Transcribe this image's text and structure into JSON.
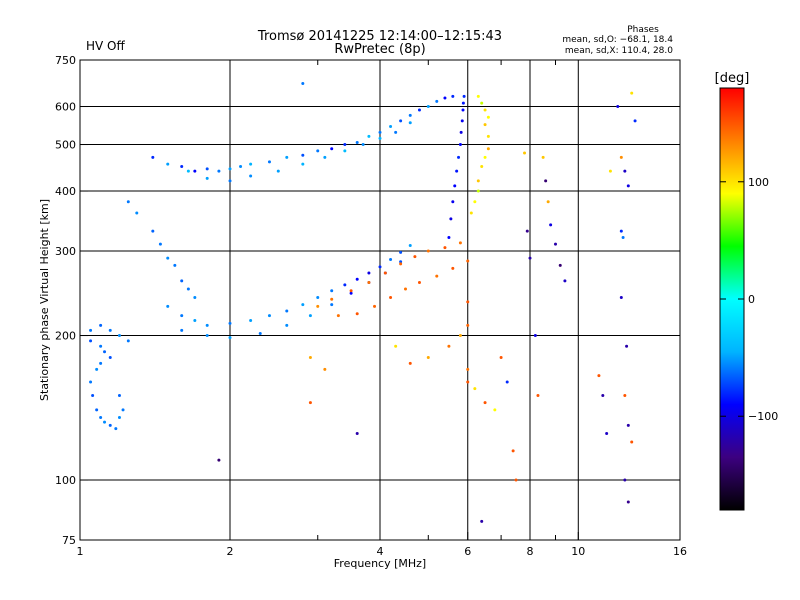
{
  "status": {
    "hv_label": "HV Off",
    "hv_color": "#cc0000"
  },
  "header": {
    "title": "Tromsø 20141225 12:14:00–12:15:43",
    "subtitle": "RwPretec (8p)"
  },
  "phases_box": {
    "heading": "Phases",
    "line_o": "mean, sd,O: −68.1, 18.4",
    "line_x": "mean, sd,X: 110.4, 28.0"
  },
  "colorbar": {
    "label": "[deg]",
    "range": [
      -180,
      180
    ],
    "ticks": [
      {
        "value": 100,
        "label": "100"
      },
      {
        "value": 0,
        "label": "0"
      },
      {
        "value": -100,
        "label": "−100"
      }
    ],
    "colors": [
      "#000000",
      "#3c0080",
      "#0000ff",
      "#00b4ff",
      "#00ffff",
      "#00ff00",
      "#ffff00",
      "#ff8000",
      "#ff0000"
    ]
  },
  "chart_data": {
    "type": "scatter",
    "xlabel": "Frequency [MHz]",
    "ylabel": "Stationary phase Virtual Height [km]",
    "xscale": "log",
    "yscale": "log",
    "xlim": [
      1,
      16
    ],
    "ylim": [
      75,
      750
    ],
    "x_ticks": [
      {
        "value": 1,
        "label": "1"
      },
      {
        "value": 2,
        "label": "2"
      },
      {
        "value": 4,
        "label": "4"
      },
      {
        "value": 6,
        "label": "6"
      },
      {
        "value": 8,
        "label": "8"
      },
      {
        "value": 10,
        "label": "10"
      },
      {
        "value": 16,
        "label": "16"
      }
    ],
    "x_minor": [
      3,
      5,
      7,
      9
    ],
    "x_grid": [
      2,
      4,
      6,
      8,
      10
    ],
    "y_ticks": [
      {
        "value": 75,
        "label": "75"
      },
      {
        "value": 100,
        "label": "100"
      },
      {
        "value": 200,
        "label": "200"
      },
      {
        "value": 300,
        "label": "300"
      },
      {
        "value": 400,
        "label": "400"
      },
      {
        "value": 500,
        "label": "500"
      },
      {
        "value": 600,
        "label": "600"
      },
      {
        "value": 750,
        "label": "750"
      }
    ],
    "y_grid": [
      100,
      200,
      300,
      400,
      500,
      600
    ],
    "grid": true,
    "series": [
      {
        "points": [
          [
            1.5,
            455,
            -50
          ],
          [
            1.6,
            450,
            -80
          ],
          [
            1.7,
            440,
            -90
          ],
          [
            1.8,
            445,
            -70
          ],
          [
            1.9,
            440,
            -60
          ],
          [
            2.0,
            445,
            -50
          ],
          [
            2.1,
            450,
            -55
          ],
          [
            2.2,
            455,
            -45
          ],
          [
            2.4,
            460,
            -60
          ],
          [
            2.6,
            470,
            -50
          ],
          [
            2.8,
            475,
            -70
          ],
          [
            3.0,
            485,
            -60
          ],
          [
            3.2,
            490,
            -90
          ],
          [
            3.4,
            500,
            -80
          ],
          [
            3.6,
            505,
            -60
          ],
          [
            3.8,
            520,
            -40
          ],
          [
            4.0,
            530,
            -60
          ],
          [
            4.2,
            545,
            -50
          ],
          [
            4.4,
            560,
            -70
          ],
          [
            4.6,
            575,
            -60
          ],
          [
            4.8,
            590,
            -80
          ],
          [
            5.0,
            600,
            -50
          ],
          [
            5.2,
            615,
            -60
          ],
          [
            5.4,
            625,
            -90
          ],
          [
            5.6,
            630,
            -80
          ],
          [
            1.65,
            440,
            -40
          ],
          [
            1.8,
            425,
            -50
          ],
          [
            2.0,
            420,
            -60
          ],
          [
            2.2,
            430,
            -55
          ],
          [
            2.5,
            440,
            -50
          ],
          [
            2.8,
            455,
            -45
          ],
          [
            3.1,
            470,
            -50
          ],
          [
            3.4,
            485,
            -40
          ],
          [
            3.7,
            500,
            -55
          ],
          [
            4.0,
            515,
            -45
          ],
          [
            4.3,
            530,
            -60
          ],
          [
            4.6,
            555,
            -50
          ]
        ]
      },
      {
        "points": [
          [
            1.5,
            230,
            -55
          ],
          [
            1.6,
            220,
            -60
          ],
          [
            1.7,
            215,
            -50
          ],
          [
            1.8,
            210,
            -55
          ],
          [
            2.0,
            212,
            -60
          ],
          [
            2.2,
            215,
            -50
          ],
          [
            2.4,
            220,
            -55
          ],
          [
            2.6,
            225,
            -60
          ],
          [
            2.8,
            232,
            -50
          ],
          [
            3.0,
            240,
            -55
          ],
          [
            3.2,
            248,
            -60
          ],
          [
            3.4,
            255,
            -80
          ],
          [
            3.6,
            262,
            -90
          ],
          [
            3.8,
            270,
            -100
          ],
          [
            4.0,
            278,
            -80
          ],
          [
            4.2,
            288,
            -60
          ],
          [
            4.4,
            298,
            -70
          ],
          [
            4.6,
            308,
            -50
          ],
          [
            1.6,
            205,
            -60
          ],
          [
            1.8,
            200,
            -55
          ],
          [
            2.0,
            198,
            -50
          ],
          [
            2.3,
            202,
            -60
          ],
          [
            2.6,
            210,
            -55
          ],
          [
            2.9,
            220,
            -50
          ],
          [
            3.2,
            232,
            -60
          ],
          [
            3.5,
            245,
            -90
          ],
          [
            3.8,
            258,
            -100
          ],
          [
            4.1,
            270,
            -80
          ],
          [
            4.4,
            285,
            -70
          ],
          [
            3.0,
            230,
            130
          ],
          [
            3.2,
            238,
            140
          ],
          [
            3.5,
            248,
            150
          ],
          [
            3.8,
            258,
            140
          ],
          [
            4.1,
            270,
            150
          ],
          [
            4.4,
            282,
            145
          ],
          [
            4.7,
            292,
            150
          ],
          [
            5.0,
            300,
            140
          ],
          [
            5.4,
            305,
            150
          ],
          [
            5.8,
            312,
            140
          ],
          [
            3.3,
            220,
            140
          ],
          [
            3.6,
            222,
            150
          ],
          [
            3.9,
            230,
            145
          ],
          [
            4.2,
            240,
            150
          ],
          [
            4.5,
            250,
            140
          ],
          [
            4.8,
            258,
            150
          ],
          [
            5.2,
            266,
            140
          ],
          [
            5.6,
            276,
            150
          ],
          [
            6.0,
            286,
            145
          ]
        ]
      },
      {
        "points": [
          [
            5.5,
            320,
            -90
          ],
          [
            5.55,
            350,
            -100
          ],
          [
            5.6,
            380,
            -95
          ],
          [
            5.65,
            410,
            -90
          ],
          [
            5.7,
            440,
            -85
          ],
          [
            5.75,
            470,
            -80
          ],
          [
            5.8,
            500,
            -90
          ],
          [
            5.82,
            530,
            -100
          ],
          [
            5.85,
            560,
            -95
          ],
          [
            5.87,
            590,
            -90
          ],
          [
            5.88,
            610,
            -85
          ],
          [
            5.9,
            630,
            -80
          ]
        ]
      },
      {
        "points": [
          [
            6.3,
            630,
            90
          ],
          [
            6.4,
            610,
            80
          ],
          [
            6.5,
            590,
            100
          ],
          [
            6.6,
            570,
            90
          ],
          [
            6.5,
            550,
            110
          ],
          [
            6.6,
            520,
            100
          ],
          [
            6.6,
            490,
            120
          ],
          [
            6.5,
            470,
            90
          ],
          [
            6.4,
            450,
            100
          ],
          [
            6.3,
            420,
            110
          ],
          [
            6.3,
            400,
            80
          ],
          [
            6.2,
            380,
            90
          ],
          [
            6.1,
            360,
            100
          ]
        ]
      },
      {
        "points": [
          [
            1.05,
            195,
            -70
          ],
          [
            1.1,
            190,
            -60
          ],
          [
            1.12,
            185,
            -65
          ],
          [
            1.15,
            180,
            -70
          ],
          [
            1.1,
            175,
            -60
          ],
          [
            1.08,
            170,
            -55
          ],
          [
            1.05,
            160,
            -60
          ],
          [
            1.06,
            150,
            -70
          ],
          [
            1.08,
            140,
            -65
          ],
          [
            1.1,
            135,
            -60
          ],
          [
            1.12,
            132,
            -55
          ],
          [
            1.15,
            130,
            -65
          ],
          [
            1.18,
            128,
            -60
          ],
          [
            1.2,
            135,
            -55
          ],
          [
            1.22,
            140,
            -60
          ],
          [
            1.2,
            150,
            -65
          ],
          [
            1.05,
            205,
            -60
          ],
          [
            1.1,
            210,
            -65
          ],
          [
            1.15,
            205,
            -60
          ],
          [
            1.2,
            200,
            -55
          ],
          [
            1.25,
            195,
            -60
          ]
        ]
      },
      {
        "points": [
          [
            1.25,
            380,
            -60
          ],
          [
            1.3,
            360,
            -55
          ],
          [
            1.4,
            330,
            -65
          ],
          [
            1.45,
            310,
            -60
          ],
          [
            1.5,
            290,
            -55
          ],
          [
            1.55,
            280,
            -60
          ],
          [
            1.6,
            260,
            -65
          ],
          [
            1.65,
            250,
            -60
          ],
          [
            1.7,
            240,
            -55
          ]
        ]
      },
      {
        "points": [
          [
            2.8,
            670,
            -60
          ],
          [
            1.4,
            470,
            -80
          ],
          [
            2.9,
            180,
            120
          ],
          [
            3.1,
            170,
            130
          ],
          [
            2.9,
            145,
            150
          ],
          [
            3.6,
            125,
            -120
          ],
          [
            1.9,
            110,
            -140
          ],
          [
            4.3,
            190,
            100
          ],
          [
            4.6,
            175,
            150
          ],
          [
            5.0,
            180,
            120
          ],
          [
            5.5,
            190,
            140
          ],
          [
            5.8,
            200,
            120
          ],
          [
            6.0,
            210,
            145
          ],
          [
            6.0,
            235,
            150
          ],
          [
            6.0,
            170,
            140
          ],
          [
            6.0,
            160,
            150
          ],
          [
            6.2,
            155,
            100
          ],
          [
            6.5,
            145,
            150
          ],
          [
            6.8,
            140,
            90
          ],
          [
            7.2,
            160,
            -80
          ],
          [
            7.4,
            115,
            150
          ],
          [
            7.5,
            100,
            150
          ],
          [
            7.8,
            480,
            110
          ],
          [
            7.9,
            330,
            -130
          ],
          [
            8.0,
            290,
            -120
          ],
          [
            8.2,
            200,
            -100
          ],
          [
            8.3,
            150,
            150
          ],
          [
            8.5,
            470,
            110
          ],
          [
            8.6,
            420,
            -140
          ],
          [
            8.7,
            380,
            120
          ],
          [
            8.8,
            340,
            -100
          ],
          [
            9.0,
            310,
            -120
          ],
          [
            9.2,
            280,
            -140
          ],
          [
            9.4,
            260,
            -110
          ],
          [
            11.0,
            165,
            150
          ],
          [
            11.2,
            150,
            -120
          ],
          [
            11.4,
            125,
            -110
          ],
          [
            11.6,
            440,
            100
          ],
          [
            12.0,
            600,
            -100
          ],
          [
            12.2,
            470,
            130
          ],
          [
            12.4,
            440,
            -110
          ],
          [
            12.6,
            410,
            -100
          ],
          [
            12.8,
            640,
            100
          ],
          [
            13.0,
            560,
            -80
          ],
          [
            12.2,
            330,
            -80
          ],
          [
            12.3,
            320,
            -60
          ],
          [
            12.5,
            190,
            -120
          ],
          [
            12.2,
            240,
            -110
          ],
          [
            12.4,
            150,
            150
          ],
          [
            12.6,
            130,
            -120
          ],
          [
            12.8,
            120,
            150
          ],
          [
            12.4,
            100,
            -120
          ],
          [
            12.6,
            90,
            -130
          ],
          [
            6.4,
            82,
            -120
          ],
          [
            7.0,
            180,
            150
          ]
        ]
      }
    ]
  }
}
